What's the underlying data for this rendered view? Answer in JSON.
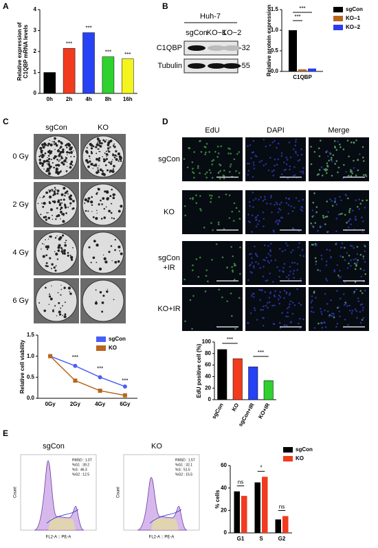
{
  "chart_data": [
    {
      "panel": "A",
      "type": "bar",
      "categories": [
        "0h",
        "2h",
        "4h",
        "8h",
        "16h"
      ],
      "values": [
        1.0,
        2.15,
        2.9,
        1.75,
        1.65
      ],
      "colors": [
        "#000000",
        "#f23a1e",
        "#2741f5",
        "#2fd12f",
        "#f4f41e"
      ],
      "ylim": [
        0,
        4
      ],
      "yticks": [
        0,
        1,
        2,
        3,
        4
      ],
      "ylabel": [
        "Relative expression of",
        "C1QBP mRNA levels"
      ],
      "significance": [
        null,
        "***",
        "***",
        "***",
        "***"
      ]
    },
    {
      "panel": "B",
      "type": "bar",
      "cell_line": "Huh-7",
      "lanes": [
        "sgCon",
        "KO−1",
        "KO−2"
      ],
      "bands": [
        "C1QBP",
        "Tubulin"
      ],
      "markers": [
        "-32",
        "-55"
      ],
      "categories": [
        "C1QBP"
      ],
      "series": [
        {
          "name": "sgCon",
          "color": "#000000",
          "values": [
            1.0
          ]
        },
        {
          "name": "KO−1",
          "color": "#b8651f",
          "values": [
            0.05
          ]
        },
        {
          "name": "KO−2",
          "color": "#2b3cf0",
          "values": [
            0.07
          ]
        }
      ],
      "ylim": [
        0,
        1.5
      ],
      "yticks": [
        {
          "value": 0,
          "label": "0.0"
        },
        {
          "value": 0.5,
          "label": "0.5"
        },
        {
          "value": 1,
          "label": "1.0"
        },
        {
          "value": 1.5,
          "label": "1.5"
        }
      ],
      "ylabel": [
        "Relative protein expression"
      ],
      "significance": [
        "***",
        "***"
      ]
    },
    {
      "panel": "C",
      "type": "line",
      "groups": [
        "sgCon",
        "KO"
      ],
      "doses": [
        "0 Gy",
        "2 Gy",
        "4 Gy",
        "6 Gy"
      ],
      "categories": [
        "0Gy",
        "2Gy",
        "4Gy",
        "6Gy"
      ],
      "series": [
        {
          "name": "sgCon",
          "color": "#4a5ef5",
          "values": [
            1.0,
            0.77,
            0.5,
            0.28
          ]
        },
        {
          "name": "KO",
          "color": "#b8651f",
          "values": [
            1.0,
            0.42,
            0.18,
            0.07
          ]
        }
      ],
      "ylim": [
        0,
        1.5
      ],
      "yticks": [
        {
          "value": 0,
          "label": "0.0"
        },
        {
          "value": 0.5,
          "label": "0.5"
        },
        {
          "value": 1,
          "label": "1.0"
        },
        {
          "value": 1.5,
          "label": "1.5"
        }
      ],
      "ylabel": [
        "Relative cell viability"
      ],
      "significance": [
        null,
        "***",
        "***",
        "***"
      ]
    },
    {
      "panel": "D",
      "type": "bar",
      "channels": [
        "EdU",
        "DAPI",
        "Merge"
      ],
      "conditions": [
        [
          "sgCon"
        ],
        [
          "KO"
        ],
        [
          "sgCon",
          "+IR"
        ],
        [
          "KO+IR"
        ]
      ],
      "categories": [
        "sgCon",
        "KO",
        "sgCon+IR",
        "KO+IR"
      ],
      "values": [
        87,
        71,
        57,
        33
      ],
      "colors": [
        "#000000",
        "#f23a1e",
        "#2741f5",
        "#2fd12f"
      ],
      "ylim": [
        0,
        100
      ],
      "yticks": [
        0,
        20,
        40,
        60,
        80,
        100
      ],
      "ylabel": [
        "EdU positive cell (%)"
      ],
      "significance": [
        "***",
        "***"
      ]
    },
    {
      "panel": "E",
      "type": "bar",
      "samples": [
        {
          "name": "sgCon",
          "stats": [
            "RMSD : 1.07",
            "%G1 : 39.2",
            "%S : 46.3",
            "%G2 : 12.5"
          ]
        },
        {
          "name": "KO",
          "stats": [
            "RMSD : 1.57",
            "%G1 : 32.1",
            "%S : 51.5",
            "%G2 : 15.5"
          ]
        }
      ],
      "histogram_xlabel": "FL2-A :: PE-A",
      "histogram_ylabel": "Count",
      "categories": [
        "G1",
        "S",
        "G2"
      ],
      "series": [
        {
          "name": "sgCon",
          "color": "#000000",
          "values": [
            37,
            45,
            12
          ]
        },
        {
          "name": "KO",
          "color": "#f23a1e",
          "values": [
            33,
            50,
            15
          ]
        }
      ],
      "ylim": [
        0,
        60
      ],
      "yticks": [
        0,
        20,
        40,
        60
      ],
      "ylabel": [
        "% cells"
      ],
      "significance": [
        "ns",
        "*",
        "ns"
      ]
    }
  ]
}
